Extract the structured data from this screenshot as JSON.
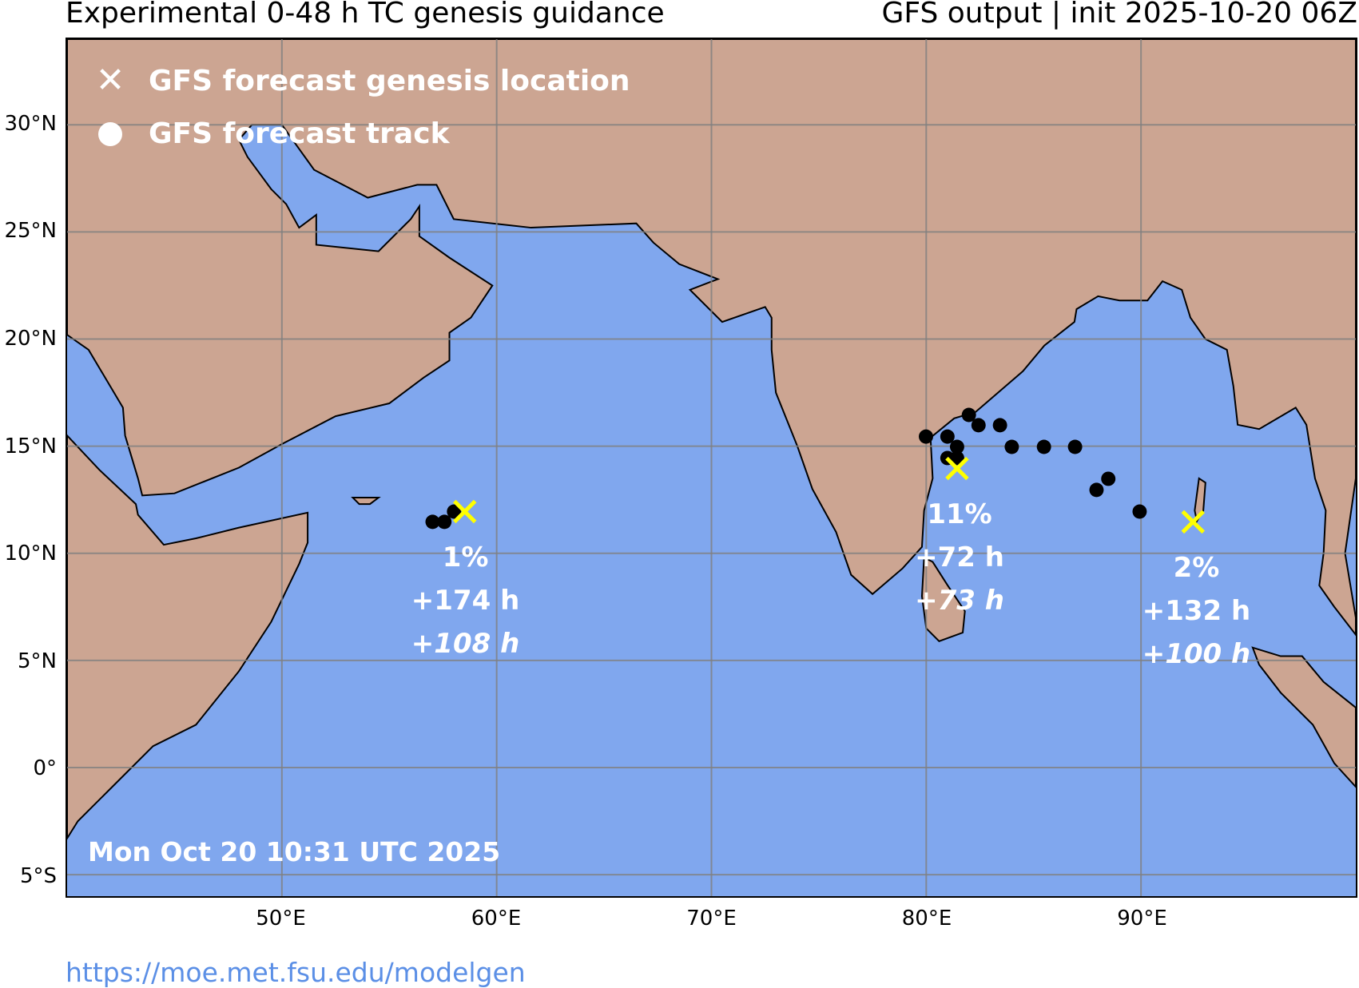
{
  "header": {
    "title_left": "Experimental 0-48 h TC genesis guidance",
    "title_right": "GFS output | init 2025-10-20 06Z"
  },
  "map": {
    "extent": {
      "lon": [
        40,
        100
      ],
      "lat": [
        -6,
        34
      ]
    },
    "colors": {
      "land": "#cca592",
      "ocean": "#80a7ee",
      "genesis_marker": "#ffff00",
      "track": "#000000"
    },
    "lat_ticks": [
      {
        "value": 30,
        "label": "30°N"
      },
      {
        "value": 25,
        "label": "25°N"
      },
      {
        "value": 20,
        "label": "20°N"
      },
      {
        "value": 15,
        "label": "15°N"
      },
      {
        "value": 10,
        "label": "10°N"
      },
      {
        "value": 5,
        "label": "5°N"
      },
      {
        "value": 0,
        "label": "0°"
      },
      {
        "value": -5,
        "label": "5°S"
      }
    ],
    "lon_ticks": [
      {
        "value": 50,
        "label": "50°E"
      },
      {
        "value": 60,
        "label": "60°E"
      },
      {
        "value": 70,
        "label": "70°E"
      },
      {
        "value": 80,
        "label": "80°E"
      },
      {
        "value": 90,
        "label": "90°E"
      }
    ],
    "legend": {
      "genesis_label": "GFS forecast genesis location",
      "track_label": "GFS forecast track"
    },
    "systems": [
      {
        "genesis": [
          58.5,
          11.95
        ],
        "probability": "1%",
        "lead1": "+174 h",
        "lead2": "+108 h",
        "track": [
          [
            57.0,
            11.47
          ],
          [
            57.55,
            11.47
          ],
          [
            58.0,
            11.95
          ]
        ]
      },
      {
        "genesis": [
          81.45,
          13.96
        ],
        "probability": "11%",
        "lead1": "+72 h",
        "lead2": "+73 h",
        "track": [
          [
            80.0,
            15.45
          ],
          [
            81.0,
            15.45
          ],
          [
            81.45,
            14.97
          ],
          [
            81.0,
            14.45
          ],
          [
            81.45,
            14.45
          ],
          [
            82.0,
            16.46
          ],
          [
            82.45,
            15.98
          ],
          [
            83.45,
            15.98
          ],
          [
            84.0,
            14.97
          ],
          [
            85.5,
            14.97
          ],
          [
            86.95,
            14.97
          ],
          [
            88.5,
            13.48
          ],
          [
            87.95,
            12.96
          ],
          [
            89.96,
            11.95
          ]
        ]
      },
      {
        "genesis": [
          92.45,
          11.47
        ],
        "probability": "2%",
        "lead1": "+132 h",
        "lead2": "+100 h",
        "track": []
      }
    ],
    "timestamp": "Mon Oct 20 10:31 UTC 2025"
  },
  "footer": {
    "url": "https://moe.met.fsu.edu/modelgen"
  }
}
